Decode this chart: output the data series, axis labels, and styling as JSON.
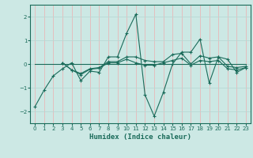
{
  "title": "",
  "xlabel": "Humidex (Indice chaleur)",
  "bg_color": "#cce8e4",
  "grid_color_h": "#b8d8d4",
  "grid_color_v": "#e8b8b8",
  "line_color": "#1a6b5a",
  "xlim": [
    -0.5,
    23.5
  ],
  "ylim": [
    -2.5,
    2.5
  ],
  "yticks": [
    -2,
    -1,
    0,
    1,
    2
  ],
  "xticks": [
    0,
    1,
    2,
    3,
    4,
    5,
    6,
    7,
    8,
    9,
    10,
    11,
    12,
    13,
    14,
    15,
    16,
    17,
    18,
    19,
    20,
    21,
    22,
    23
  ],
  "lines": [
    {
      "x": [
        0,
        1,
        2,
        3,
        4,
        5,
        6,
        7,
        8,
        9,
        10,
        11,
        12,
        13,
        14,
        15,
        16,
        17,
        18,
        19,
        20,
        21,
        22,
        23
      ],
      "y": [
        -1.8,
        -1.1,
        -0.5,
        -0.2,
        0.05,
        -0.7,
        -0.3,
        -0.35,
        0.3,
        0.3,
        1.3,
        2.1,
        -1.3,
        -2.2,
        -1.2,
        0.0,
        0.5,
        0.5,
        1.05,
        -0.8,
        0.3,
        0.2,
        -0.35,
        -0.15
      ]
    },
    {
      "x": [
        3,
        4,
        5,
        6,
        7,
        8,
        9,
        10,
        11,
        12,
        13,
        14,
        15,
        16,
        17,
        18,
        19,
        20,
        21,
        22,
        23
      ],
      "y": [
        0.05,
        -0.25,
        -0.4,
        -0.2,
        -0.15,
        0.1,
        0.1,
        0.3,
        0.3,
        0.15,
        0.1,
        0.1,
        0.4,
        0.45,
        0.0,
        0.35,
        0.25,
        0.3,
        -0.1,
        -0.15,
        -0.1
      ]
    },
    {
      "x": [
        3,
        4,
        5,
        6,
        7,
        8,
        9,
        10,
        11,
        12,
        13,
        14,
        15,
        16,
        17,
        18,
        19,
        20,
        21,
        22,
        23
      ],
      "y": [
        0.05,
        -0.25,
        -0.45,
        -0.22,
        -0.18,
        0.05,
        0.05,
        0.2,
        0.05,
        -0.05,
        -0.05,
        0.05,
        0.15,
        0.25,
        -0.05,
        0.15,
        0.1,
        0.15,
        -0.2,
        -0.25,
        -0.15
      ]
    },
    {
      "x": [
        0,
        23
      ],
      "y": [
        0.0,
        0.0
      ]
    }
  ]
}
